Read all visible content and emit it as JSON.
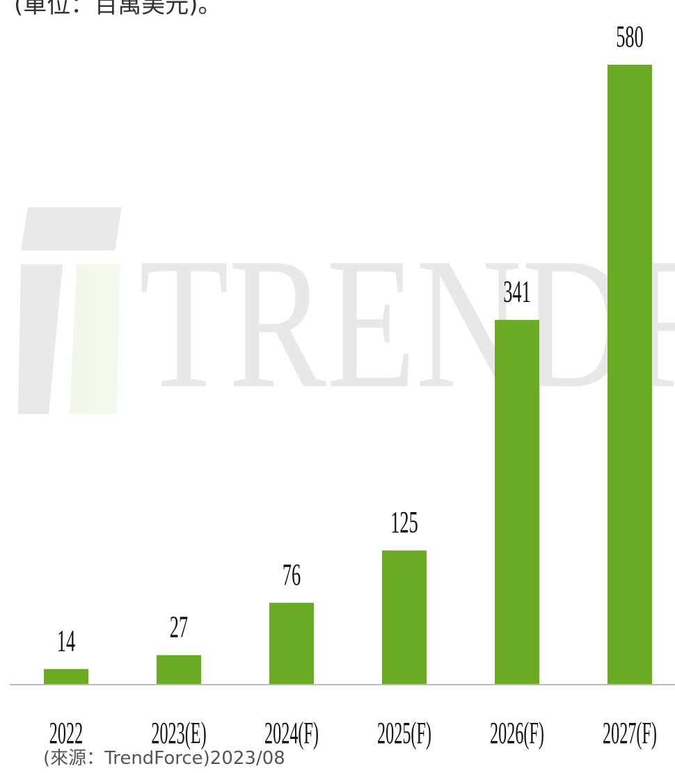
{
  "chart_data": {
    "type": "bar",
    "title": "(單位：百萬美元)。",
    "watermark": "TRENDFORCE",
    "source": "(來源：TrendForce)2023/08",
    "categories": [
      "2022",
      "2023(E)",
      "2024(F)",
      "2025(F)",
      "2026(F)",
      "2027(F)"
    ],
    "values": [
      14,
      27,
      76,
      125,
      341,
      580
    ],
    "color": "#6aaa24"
  }
}
